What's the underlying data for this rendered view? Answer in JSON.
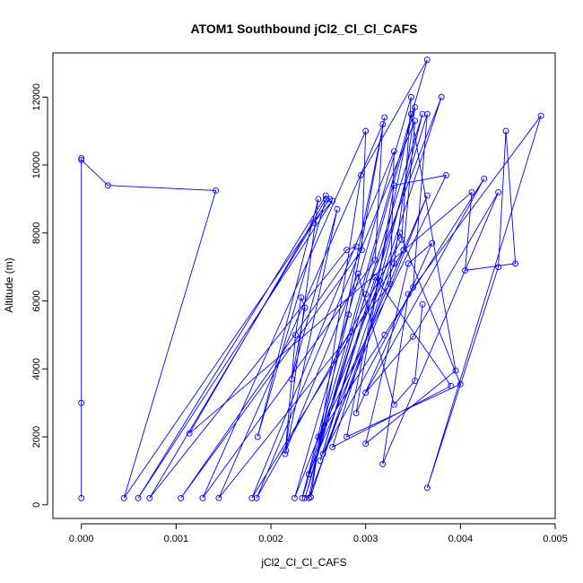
{
  "chart_data": {
    "type": "line",
    "title": "ATOM1 Southbound jCl2_Cl_Cl_CAFS",
    "xlabel": "jCl2_Cl_Cl_CAFS",
    "ylabel": "Altitude (m)",
    "xlim": [
      -0.0003,
      0.005
    ],
    "ylim": [
      -400,
      13300
    ],
    "x_ticks": [
      0.0,
      0.001,
      0.002,
      0.003,
      0.004,
      0.005
    ],
    "x_tick_labels": [
      "0.000",
      "0.001",
      "0.002",
      "0.003",
      "0.004",
      "0.005"
    ],
    "y_ticks": [
      0,
      2000,
      4000,
      6000,
      8000,
      10000,
      12000
    ],
    "y_tick_labels": [
      "0",
      "2000",
      "4000",
      "6000",
      "8000",
      "10000",
      "12000"
    ],
    "grid": false,
    "colors": {
      "series": "#0000ff",
      "axis": "#000000"
    },
    "series": [
      {
        "marker": "open-circle",
        "points": [
          [
            0.0,
            200
          ],
          [
            0.0,
            3000
          ],
          [
            0.0,
            10200
          ],
          [
            0.0,
            10150
          ],
          [
            0.00028,
            9400
          ],
          [
            0.00142,
            9250
          ],
          [
            0.00045,
            200
          ],
          [
            0.00262,
            9000
          ],
          [
            0.00258,
            9100
          ],
          [
            0.0006,
            200
          ],
          [
            0.00265,
            8950
          ],
          [
            0.00245,
            8300
          ],
          [
            0.00072,
            200
          ],
          [
            0.0028,
            7500
          ],
          [
            0.0029,
            7600
          ],
          [
            0.00105,
            200
          ],
          [
            0.00296,
            7500
          ],
          [
            0.003,
            11000
          ],
          [
            0.00128,
            200
          ],
          [
            0.0031,
            7200
          ],
          [
            0.00318,
            11200
          ],
          [
            0.00145,
            200
          ],
          [
            0.00326,
            6500
          ],
          [
            0.0033,
            10400
          ],
          [
            0.0018,
            200
          ],
          [
            0.0034,
            7500
          ],
          [
            0.00352,
            11300
          ],
          [
            0.00185,
            200
          ],
          [
            0.00338,
            7800
          ],
          [
            0.00348,
            12000
          ],
          [
            0.00225,
            200
          ],
          [
            0.00315,
            6600
          ],
          [
            0.0036,
            11500
          ],
          [
            0.00233,
            200
          ],
          [
            0.00282,
            5600
          ],
          [
            0.0032,
            11400
          ],
          [
            0.0024,
            200
          ],
          [
            0.0033,
            7100
          ],
          [
            0.00352,
            11700
          ],
          [
            0.00236,
            200
          ],
          [
            0.003,
            6200
          ],
          [
            0.0038,
            12000
          ],
          [
            0.00242,
            230
          ],
          [
            0.00295,
            9700
          ],
          [
            0.00365,
            13100
          ],
          [
            0.0024,
            900
          ],
          [
            0.0034,
            7500
          ],
          [
            0.00365,
            9100
          ],
          [
            0.00255,
            1500
          ],
          [
            0.0035,
            6400
          ],
          [
            0.00365,
            11500
          ],
          [
            0.00252,
            1300
          ],
          [
            0.0031,
            6700
          ],
          [
            0.0039,
            3500
          ],
          [
            0.00265,
            1700
          ],
          [
            0.00336,
            8000
          ],
          [
            0.004,
            3550
          ],
          [
            0.0028,
            2000
          ],
          [
            0.00348,
            11500
          ],
          [
            0.00395,
            3950
          ],
          [
            0.003,
            1800
          ],
          [
            0.00345,
            7100
          ],
          [
            0.0037,
            7700
          ],
          [
            0.0029,
            2700
          ],
          [
            0.0033,
            9400
          ],
          [
            0.00385,
            9700
          ],
          [
            0.0025,
            2000
          ],
          [
            0.0032,
            5000
          ],
          [
            0.00425,
            9600
          ],
          [
            0.003,
            3300
          ],
          [
            0.0035,
            4950
          ],
          [
            0.0044,
            9200
          ],
          [
            0.00318,
            1200
          ],
          [
            0.00345,
            6200
          ],
          [
            0.00485,
            11450
          ],
          [
            0.00365,
            500
          ],
          [
            0.0044,
            7000
          ],
          [
            0.00448,
            11000
          ],
          [
            0.00458,
            7100
          ],
          [
            0.00405,
            6900
          ],
          [
            0.00412,
            9200
          ],
          [
            0.00114,
            2100
          ],
          [
            0.00258,
            9000
          ],
          [
            0.00186,
            2000
          ],
          [
            0.0025,
            9000
          ],
          [
            0.00215,
            1500
          ],
          [
            0.00226,
            5000
          ],
          [
            0.00232,
            6100
          ],
          [
            0.00236,
            5800
          ],
          [
            0.00222,
            3700
          ],
          [
            0.0027,
            8700
          ],
          [
            0.00216,
            1600
          ],
          [
            0.00292,
            6800
          ],
          [
            0.0033,
            2950
          ],
          [
            0.00352,
            3650
          ],
          [
            0.0036,
            5900
          ]
        ]
      }
    ]
  }
}
